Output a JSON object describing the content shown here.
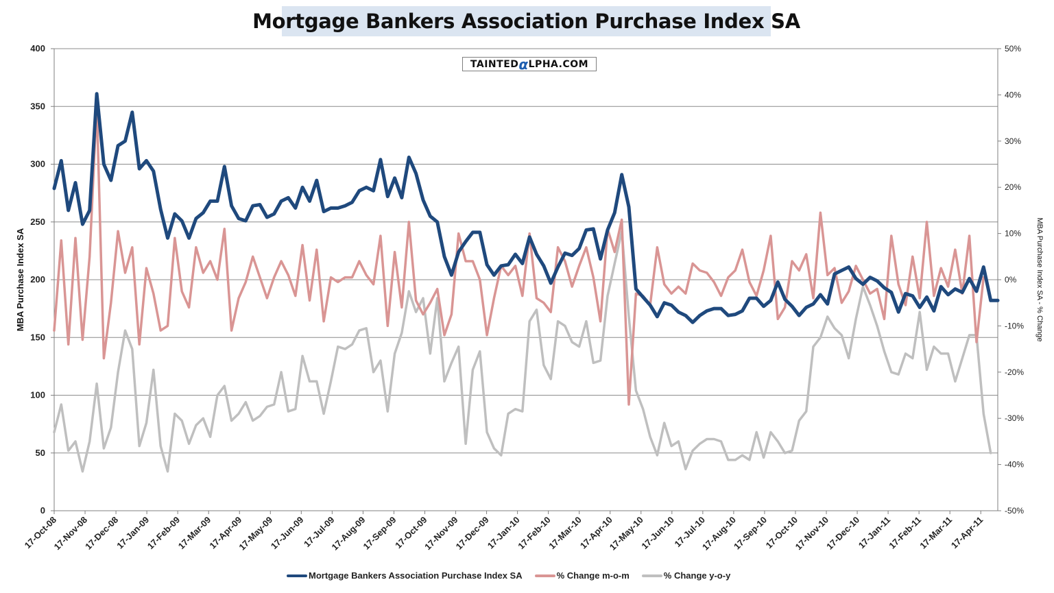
{
  "title": "Mortgage Bankers Association Purchase Index SA",
  "watermark": {
    "prefix": "TAINTED",
    "alpha": "α",
    "suffix": "LPHA.COM"
  },
  "chart_data": {
    "type": "line",
    "title": "Mortgage Bankers Association Purchase Index SA",
    "ylabel": "MBA Purchase Index SA",
    "ylabel_right": "MBA Purchase Index SA - % Change",
    "ylim": [
      0,
      400
    ],
    "ylim_right": [
      -50,
      50
    ],
    "y_ticks": [
      "0",
      "50",
      "100",
      "150",
      "200",
      "250",
      "300",
      "350",
      "400"
    ],
    "y_ticks_right": [
      "-50%",
      "-40%",
      "-30%",
      "-20%",
      "-10%",
      "0%",
      "10%",
      "20%",
      "30%",
      "40%",
      "50%"
    ],
    "x_tick_labels": [
      "17-Oct-08",
      "17-Nov-08",
      "17-Dec-08",
      "17-Jan-09",
      "17-Feb-09",
      "17-Mar-09",
      "17-Apr-09",
      "17-May-09",
      "17-Jun-09",
      "17-Jul-09",
      "17-Aug-09",
      "17-Sep-09",
      "17-Oct-09",
      "17-Nov-09",
      "17-Dec-09",
      "17-Jan-10",
      "17-Feb-10",
      "17-Mar-10",
      "17-Apr-10",
      "17-May-10",
      "17-Jun-10",
      "17-Jul-10",
      "17-Aug-10",
      "17-Sep-10",
      "17-Oct-10",
      "17-Nov-10",
      "17-Dec-10",
      "17-Jan-11",
      "17-Feb-11",
      "17-Mar-11",
      "17-Apr-11"
    ],
    "grid": true,
    "legend_position": "bottom",
    "series": [
      {
        "name": "Mortgage Bankers Association Purchase Index SA",
        "axis": "left",
        "color": "#1f497d",
        "values": [
          279,
          303,
          260,
          284,
          248,
          260,
          361,
          300,
          286,
          316,
          320,
          345,
          296,
          303,
          294,
          261,
          236,
          257,
          251,
          236,
          253,
          258,
          268,
          268,
          298,
          264,
          253,
          251,
          264,
          265,
          254,
          257,
          268,
          271,
          262,
          280,
          268,
          286,
          259,
          262,
          262,
          264,
          267,
          277,
          280,
          277,
          304,
          272,
          288,
          271,
          306,
          292,
          269,
          255,
          250,
          220,
          204,
          224,
          233,
          241,
          241,
          213,
          204,
          212,
          213,
          222,
          214,
          237,
          222,
          212,
          197,
          211,
          223,
          221,
          227,
          243,
          244,
          218,
          243,
          258,
          291,
          263,
          192,
          185,
          178,
          168,
          180,
          178,
          172,
          169,
          163,
          169,
          173,
          175,
          175,
          169,
          170,
          173,
          184,
          184,
          177,
          182,
          198,
          183,
          177,
          169,
          176,
          179,
          187,
          179,
          205,
          208,
          211,
          201,
          196,
          202,
          199,
          193,
          189,
          172,
          188,
          186,
          176,
          185,
          173,
          194,
          187,
          192,
          189,
          201,
          190,
          211,
          182,
          182
        ]
      },
      {
        "name": "% Change m-o-m",
        "axis": "right",
        "color": "#d99594",
        "values": [
          -11,
          8.5,
          -14,
          9,
          -13,
          5,
          38,
          -17,
          -5,
          10.5,
          1.5,
          7,
          -14,
          2.5,
          -3,
          -11,
          -10,
          9,
          -2.5,
          -6,
          7,
          1.5,
          4,
          0,
          11,
          -11,
          -4,
          -0.5,
          5,
          0.5,
          -4,
          0.5,
          4,
          1,
          -3.5,
          7.5,
          -4.5,
          6.5,
          -9,
          0.5,
          -0.5,
          0.5,
          0.5,
          4,
          1,
          -1,
          9.5,
          -10,
          6,
          -6,
          12.5,
          -4.5,
          -7.5,
          -5,
          -2,
          -12,
          -7.5,
          10,
          4,
          4,
          0,
          -12,
          -4,
          3,
          1,
          3,
          -3.5,
          10,
          -4,
          -5,
          -7,
          7,
          4,
          -1.5,
          3,
          7,
          0.5,
          -9,
          11,
          6,
          13,
          -27,
          -3,
          -3.5,
          -5.5,
          7,
          -1,
          -3,
          -1.5,
          -3,
          3.5,
          2,
          1.5,
          -0.5,
          -3.5,
          0.5,
          2,
          6.5,
          -0.5,
          -3.5,
          2,
          9.5,
          -8.5,
          -6,
          4,
          2,
          5.5,
          -4,
          14.5,
          1,
          2.5,
          -5,
          -2.5,
          3,
          0,
          -3,
          -2,
          -8.5,
          9.5,
          -1,
          -5.5,
          5,
          -4,
          12.5,
          -3.5,
          2.5,
          -1.5,
          6.5,
          -3,
          9.5,
          -13.5,
          0.5
        ]
      },
      {
        "name": "% Change y-o-y",
        "axis": "right",
        "color": "#bfbfbf",
        "values": [
          -33,
          -27,
          -37,
          -35,
          -41.5,
          -35,
          -22.5,
          -36.5,
          -32,
          -20,
          -11,
          -15,
          -36,
          -31,
          -19.5,
          -36,
          -41.5,
          -29,
          -30.5,
          -35.5,
          -31.5,
          -30,
          -34,
          -25,
          -23,
          -30.5,
          -29,
          -26.5,
          -30.5,
          -29.5,
          -27.5,
          -27,
          -20,
          -28.5,
          -28,
          -16.5,
          -22,
          -22,
          -29,
          -22,
          -14.5,
          -15,
          -14,
          -11,
          -10.5,
          -20,
          -17.5,
          -28.5,
          -16,
          -11.5,
          -2.5,
          -7,
          -4,
          -16,
          -4,
          -22,
          -18,
          -14.5,
          -35.5,
          -19.5,
          -15.5,
          -33,
          -36.5,
          -38,
          -29,
          -28,
          -28.5,
          -9,
          -6.5,
          -18.5,
          -21.5,
          -9,
          -10,
          -13.5,
          -14.5,
          -9,
          -18,
          -17.5,
          -3.5,
          3.5,
          10.5,
          -8,
          -24,
          -28,
          -34,
          -38,
          -31,
          -36,
          -35,
          -41,
          -37,
          -35.5,
          -34.5,
          -34.5,
          -35,
          -39,
          -39,
          -38,
          -39,
          -33,
          -38.5,
          -33,
          -35,
          -37.5,
          -37,
          -30.5,
          -28.5,
          -14.5,
          -12.5,
          -8,
          -10.5,
          -12,
          -17,
          -8.5,
          -1.5,
          -5.5,
          -10,
          -15.5,
          -20,
          -20.5,
          -16,
          -17,
          -7,
          -19.5,
          -14.5,
          -16,
          -16,
          -22,
          -17,
          -12,
          -12,
          -29,
          -37.5
        ]
      }
    ]
  }
}
